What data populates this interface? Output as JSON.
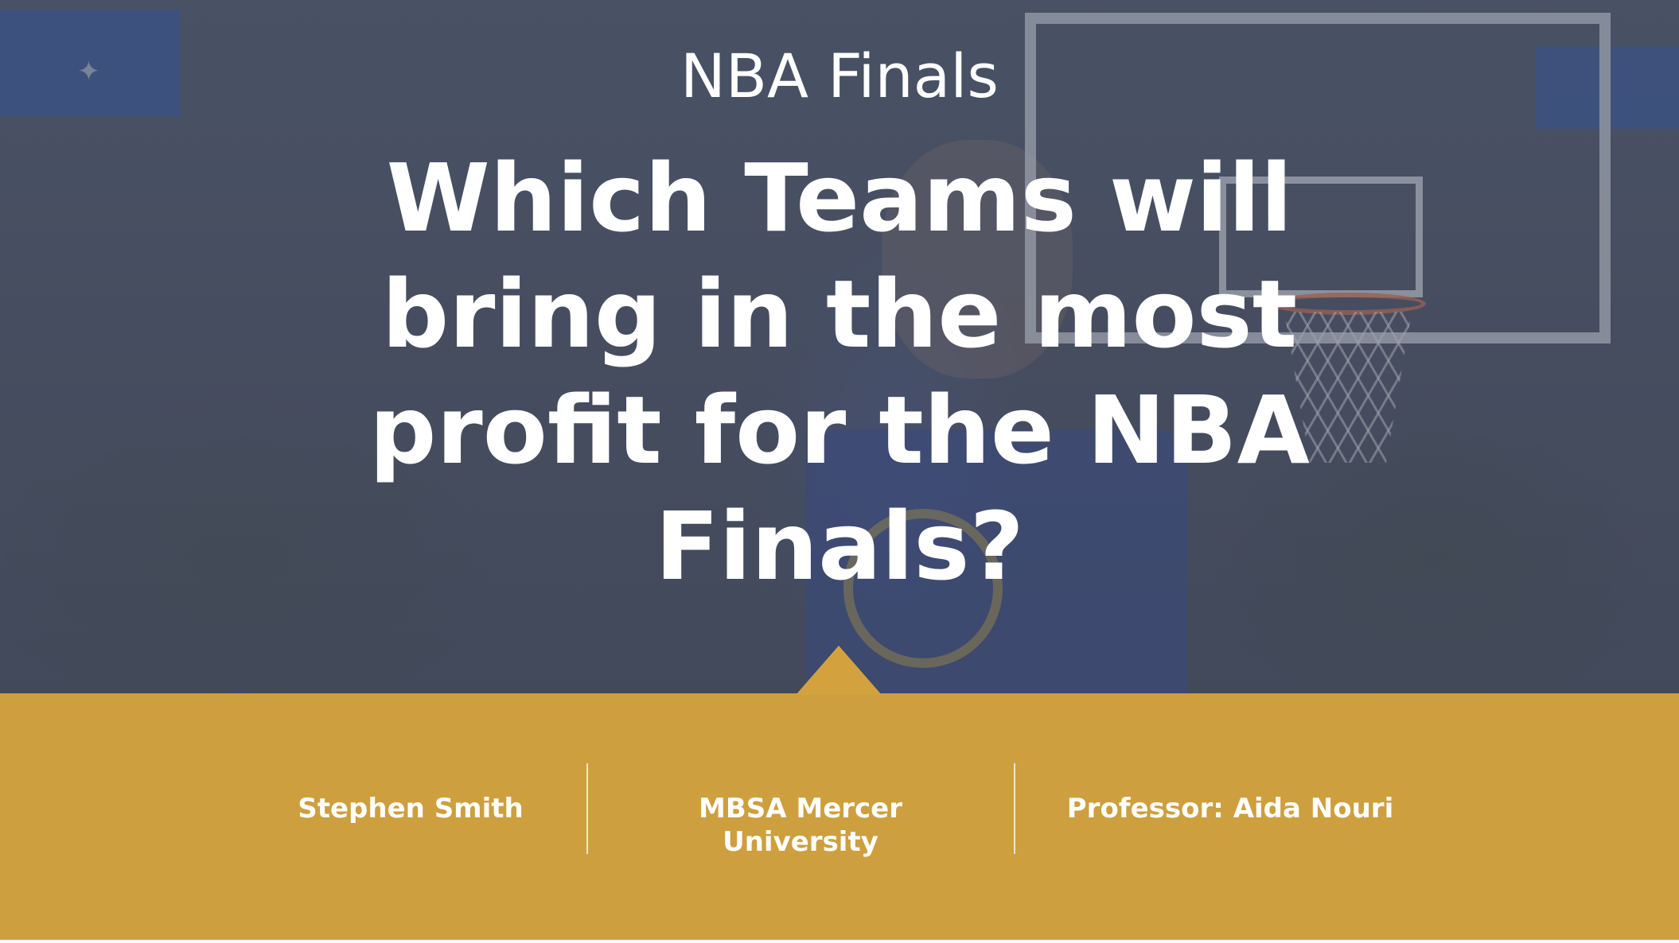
{
  "slide": {
    "subtitle": "NBA Finals",
    "title": "Which Teams will bring in the most profit for the NBA Finals?",
    "credits": {
      "author": "Stephen Smith",
      "institution": "MBSA Mercer University",
      "professor": "Professor: Aida Nouri"
    }
  },
  "colors": {
    "band": "#d3a23e",
    "overlay": "#464e62",
    "text": "#ffffff"
  }
}
